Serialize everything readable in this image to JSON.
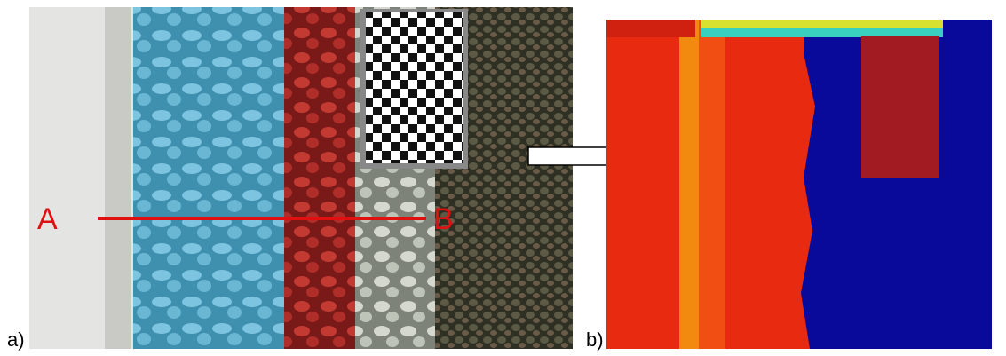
{
  "labels": {
    "panel_a": "a)",
    "panel_b": "b)",
    "point_a": "A",
    "point_b": "B"
  }
}
